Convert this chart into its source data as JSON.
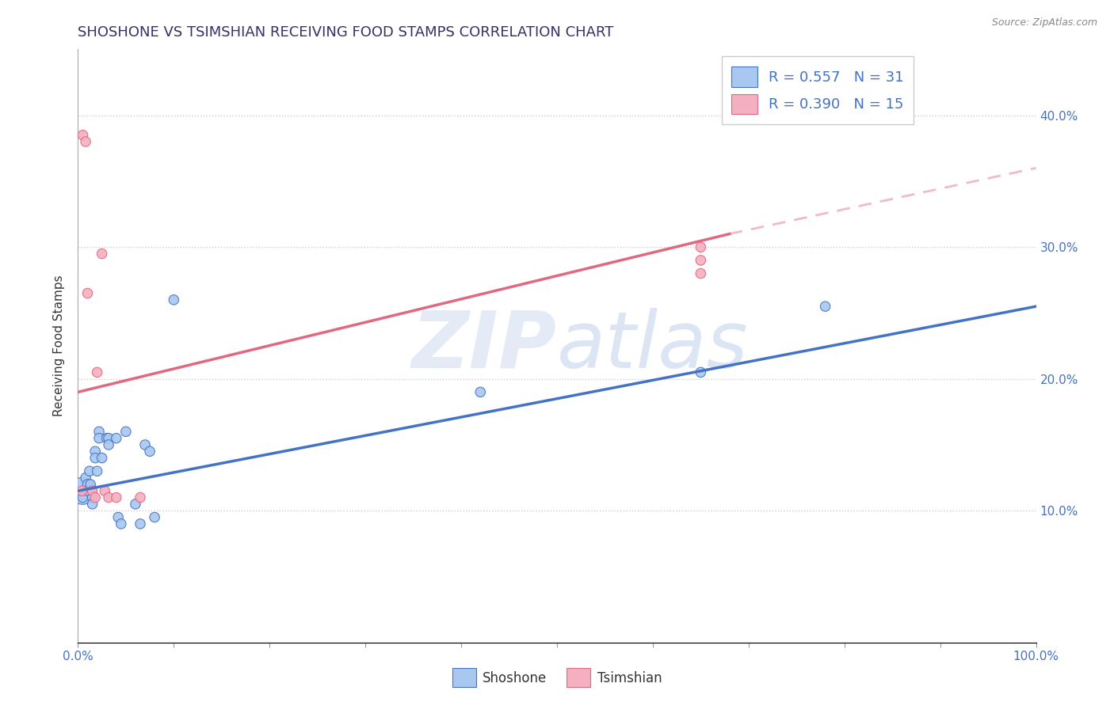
{
  "title": "SHOSHONE VS TSIMSHIAN RECEIVING FOOD STAMPS CORRELATION CHART",
  "source": "Source: ZipAtlas.com",
  "ylabel": "Receiving Food Stamps",
  "xlim": [
    0.0,
    1.0
  ],
  "ylim": [
    0.0,
    0.45
  ],
  "shoshone_R": "0.557",
  "shoshone_N": "31",
  "tsimshian_R": "0.390",
  "tsimshian_N": "15",
  "shoshone_color": "#A8C8F0",
  "tsimshian_color": "#F4B0C0",
  "shoshone_line_color": "#4472C4",
  "tsimshian_line_color": "#E06880",
  "background_color": "#FFFFFF",
  "watermark": "ZIPatlas",
  "shoshone_x": [
    0.005,
    0.005,
    0.008,
    0.01,
    0.01,
    0.012,
    0.013,
    0.015,
    0.015,
    0.018,
    0.018,
    0.02,
    0.022,
    0.022,
    0.025,
    0.03,
    0.032,
    0.032,
    0.04,
    0.042,
    0.045,
    0.05,
    0.06,
    0.065,
    0.07,
    0.075,
    0.08,
    0.1,
    0.42,
    0.65,
    0.78
  ],
  "shoshone_y": [
    0.115,
    0.11,
    0.125,
    0.12,
    0.115,
    0.13,
    0.12,
    0.11,
    0.105,
    0.145,
    0.14,
    0.13,
    0.16,
    0.155,
    0.14,
    0.155,
    0.155,
    0.15,
    0.155,
    0.095,
    0.09,
    0.16,
    0.105,
    0.09,
    0.15,
    0.145,
    0.095,
    0.26,
    0.19,
    0.205,
    0.255
  ],
  "shoshone_sizes": [
    600,
    80,
    80,
    80,
    80,
    80,
    80,
    80,
    80,
    80,
    80,
    80,
    80,
    80,
    80,
    80,
    80,
    80,
    80,
    80,
    80,
    80,
    80,
    80,
    80,
    80,
    80,
    80,
    80,
    80,
    80
  ],
  "tsimshian_x": [
    0.004,
    0.005,
    0.008,
    0.01,
    0.015,
    0.018,
    0.02,
    0.025,
    0.028,
    0.032,
    0.04,
    0.065,
    0.65,
    0.65,
    0.65
  ],
  "tsimshian_y": [
    0.115,
    0.385,
    0.38,
    0.265,
    0.115,
    0.11,
    0.205,
    0.295,
    0.115,
    0.11,
    0.11,
    0.11,
    0.3,
    0.29,
    0.28
  ],
  "tsimshian_sizes": [
    80,
    80,
    80,
    80,
    80,
    80,
    80,
    80,
    80,
    80,
    80,
    80,
    80,
    80,
    80
  ],
  "legend_shoshone_label": "Shoshone",
  "legend_tsimshian_label": "Tsimshian",
  "grid_color": "#CCCCCC",
  "shoshone_line": [
    0.0,
    0.115,
    1.0,
    0.255
  ],
  "tsimshian_line_solid": [
    0.0,
    0.19,
    0.68,
    0.31
  ],
  "tsimshian_line_dashed": [
    0.68,
    0.31,
    1.0,
    0.36
  ]
}
